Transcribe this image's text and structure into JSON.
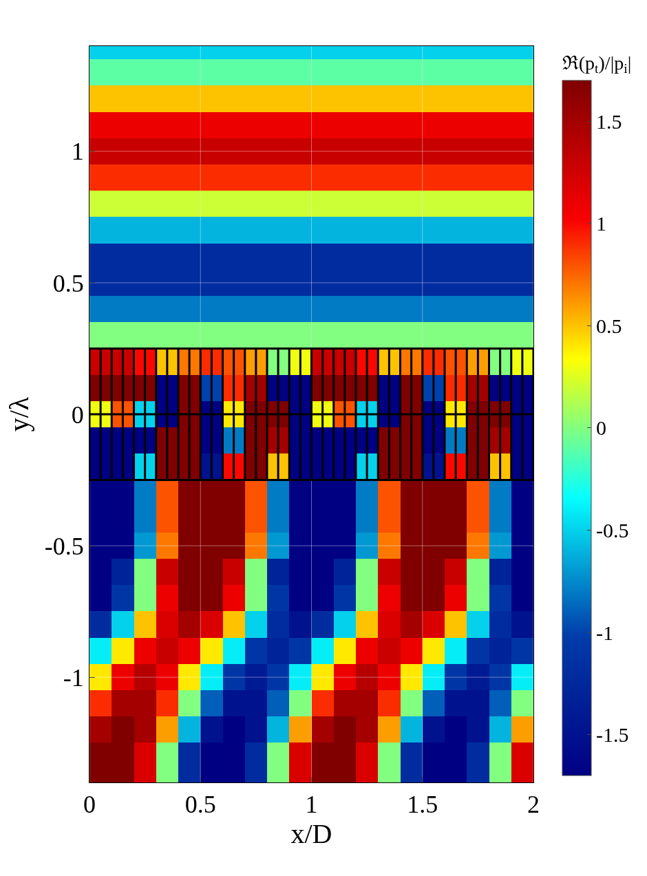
{
  "chart_data": {
    "type": "heatmap",
    "xlabel": "x/D",
    "ylabel": "y/λ",
    "clabel": "ℜ(p$_{t}$)/|p$_{i}$|",
    "x": [
      0.05,
      0.15,
      0.25,
      0.35,
      0.45,
      0.55,
      0.65,
      0.75,
      0.85,
      0.95,
      1.05,
      1.15,
      1.25,
      1.35,
      1.45,
      1.55,
      1.65,
      1.75,
      1.85,
      1.95
    ],
    "y": [
      1.4,
      1.3,
      1.2,
      1.1,
      1.0,
      0.9,
      0.8,
      0.7,
      0.6,
      0.5,
      0.4,
      0.3,
      0.2,
      0.1,
      0,
      -0.1,
      -0.2,
      -0.3,
      -0.4,
      -0.5,
      -0.6,
      -0.7,
      -0.8,
      -0.9,
      -1.0,
      -1.1,
      -1.2,
      -1.3,
      -1.4
    ],
    "cells": [
      [
        -0.5,
        -0.5,
        -0.5,
        -0.5,
        -0.5,
        -0.5,
        -0.5,
        -0.5,
        -0.5,
        -0.5,
        -0.5,
        -0.5,
        -0.5,
        -0.5,
        -0.5,
        -0.5,
        -0.5,
        -0.5,
        -0.5,
        -0.5
      ],
      [
        -0.1,
        -0.1,
        -0.1,
        -0.1,
        -0.1,
        -0.1,
        -0.1,
        -0.1,
        -0.1,
        -0.1,
        -0.1,
        -0.1,
        -0.1,
        -0.1,
        -0.1,
        -0.1,
        -0.1,
        -0.1,
        -0.1,
        -0.1
      ],
      [
        0.5,
        0.5,
        0.5,
        0.5,
        0.5,
        0.5,
        0.5,
        0.5,
        0.5,
        0.5,
        0.5,
        0.5,
        0.5,
        0.5,
        0.5,
        0.5,
        0.5,
        0.5,
        0.5,
        0.5
      ],
      [
        1.1,
        1.1,
        1.1,
        1.1,
        1.1,
        1.1,
        1.1,
        1.1,
        1.1,
        1.1,
        1.1,
        1.1,
        1.1,
        1.1,
        1.1,
        1.1,
        1.1,
        1.1,
        1.1,
        1.1
      ],
      [
        1.3,
        1.3,
        1.3,
        1.3,
        1.3,
        1.3,
        1.3,
        1.3,
        1.3,
        1.3,
        1.3,
        1.3,
        1.3,
        1.3,
        1.3,
        1.3,
        1.3,
        1.3,
        1.3,
        1.3
      ],
      [
        0.9,
        0.9,
        0.9,
        0.9,
        0.9,
        0.9,
        0.9,
        0.9,
        0.9,
        0.9,
        0.9,
        0.9,
        0.9,
        0.9,
        0.9,
        0.9,
        0.9,
        0.9,
        0.9,
        0.9
      ],
      [
        0.2,
        0.2,
        0.2,
        0.2,
        0.2,
        0.2,
        0.2,
        0.2,
        0.2,
        0.2,
        0.2,
        0.2,
        0.2,
        0.2,
        0.2,
        0.2,
        0.2,
        0.2,
        0.2,
        0.2
      ],
      [
        -0.6,
        -0.6,
        -0.6,
        -0.6,
        -0.6,
        -0.6,
        -0.6,
        -0.6,
        -0.6,
        -0.6,
        -0.6,
        -0.6,
        -0.6,
        -0.6,
        -0.6,
        -0.6,
        -0.6,
        -0.6,
        -0.6,
        -0.6
      ],
      [
        -1.2,
        -1.2,
        -1.2,
        -1.2,
        -1.2,
        -1.2,
        -1.2,
        -1.2,
        -1.2,
        -1.2,
        -1.2,
        -1.2,
        -1.2,
        -1.2,
        -1.2,
        -1.2,
        -1.2,
        -1.2,
        -1.2,
        -1.2
      ],
      [
        -1.2,
        -1.2,
        -1.2,
        -1.2,
        -1.2,
        -1.2,
        -1.2,
        -1.2,
        -1.2,
        -1.2,
        -1.2,
        -1.2,
        -1.2,
        -1.2,
        -1.2,
        -1.2,
        -1.2,
        -1.2,
        -1.2,
        -1.2
      ],
      [
        -0.8,
        -0.8,
        -0.8,
        -0.8,
        -0.8,
        -0.8,
        -0.8,
        -0.8,
        -0.8,
        -0.8,
        -0.8,
        -0.8,
        -0.8,
        -0.8,
        -0.8,
        -0.8,
        -0.8,
        -0.8,
        -0.8,
        -0.8
      ],
      [
        0.0,
        0.0,
        0.0,
        0.0,
        0.0,
        0.0,
        0.0,
        0.0,
        0.0,
        0.0,
        0.0,
        0.0,
        0.0,
        0.0,
        0.0,
        0.0,
        0.0,
        0.0,
        0.0,
        0.0
      ],
      [
        1.3,
        1.3,
        1.0,
        0.5,
        0.7,
        0.9,
        0.8,
        0.6,
        0.0,
        0.3,
        1.3,
        1.3,
        1.0,
        0.5,
        0.7,
        0.9,
        0.8,
        0.6,
        0.0,
        0.3
      ],
      [
        1.7,
        1.7,
        1.7,
        -1.7,
        1.7,
        -1.0,
        0.9,
        1.5,
        -1.7,
        -1.7,
        1.7,
        1.7,
        1.7,
        -1.7,
        1.7,
        -1.0,
        0.9,
        1.5,
        -1.7,
        -1.7
      ],
      [
        0.3,
        0.8,
        -0.5,
        -1.7,
        1.7,
        -1.7,
        0.4,
        1.7,
        1.7,
        -1.7,
        0.3,
        0.8,
        -0.5,
        -1.7,
        1.7,
        -1.7,
        0.4,
        1.7,
        1.7,
        -1.7
      ],
      [
        -1.7,
        -1.7,
        -1.7,
        1.7,
        1.7,
        -1.7,
        -0.8,
        1.7,
        1.5,
        -1.7,
        -1.7,
        -1.7,
        -1.7,
        1.7,
        1.7,
        -1.7,
        -0.8,
        1.7,
        1.5,
        -1.7
      ],
      [
        -1.7,
        -1.7,
        -0.5,
        1.7,
        1.7,
        -1.5,
        1.0,
        1.7,
        0.5,
        -1.7,
        -1.7,
        -1.7,
        -0.5,
        1.7,
        1.7,
        -1.5,
        1.0,
        1.7,
        0.5,
        -1.7
      ],
      [
        -1.7,
        -1.7,
        -0.8,
        0.8,
        1.7,
        1.7,
        1.7,
        0.8,
        -0.8,
        -1.7,
        -1.7,
        -1.7,
        -0.8,
        0.8,
        1.7,
        1.7,
        1.7,
        0.8,
        -0.8,
        -1.7
      ],
      [
        -1.7,
        -1.7,
        -0.8,
        0.8,
        1.7,
        1.7,
        1.7,
        0.8,
        -0.8,
        -1.7,
        -1.7,
        -1.7,
        -0.8,
        0.8,
        1.7,
        1.7,
        1.7,
        0.8,
        -0.8,
        -1.7
      ],
      [
        -1.7,
        -1.7,
        -0.7,
        0.7,
        1.7,
        1.7,
        1.7,
        0.7,
        -0.7,
        -1.7,
        -1.7,
        -1.7,
        -0.7,
        0.7,
        1.7,
        1.7,
        1.7,
        0.7,
        -0.7,
        -1.7
      ],
      [
        -1.7,
        -1.3,
        0.0,
        1.3,
        1.7,
        1.7,
        1.3,
        0.0,
        -1.3,
        -1.7,
        -1.7,
        -1.3,
        0.0,
        1.3,
        1.7,
        1.7,
        1.3,
        0.0,
        -1.3,
        -1.7
      ],
      [
        -1.7,
        -1.1,
        0.0,
        1.1,
        1.7,
        1.7,
        1.1,
        0.0,
        -1.1,
        -1.7,
        -1.7,
        -1.1,
        0.0,
        1.1,
        1.7,
        1.7,
        1.1,
        0.0,
        -1.1,
        -1.7
      ],
      [
        -1.2,
        -0.5,
        0.5,
        1.2,
        1.5,
        1.2,
        0.5,
        -0.5,
        -1.2,
        -1.5,
        -1.2,
        -0.5,
        0.5,
        1.2,
        1.5,
        1.2,
        0.5,
        -0.5,
        -1.2,
        -1.5
      ],
      [
        -0.4,
        0.4,
        1.1,
        1.3,
        1.1,
        0.4,
        -0.4,
        -1.1,
        -1.3,
        -1.1,
        -0.4,
        0.4,
        1.1,
        1.3,
        1.1,
        0.4,
        -0.4,
        -1.1,
        -1.3,
        -1.1
      ],
      [
        0.4,
        1.1,
        1.4,
        1.1,
        0.4,
        -0.4,
        -1.1,
        -1.4,
        -1.1,
        -0.4,
        0.4,
        1.1,
        1.4,
        1.1,
        0.4,
        -0.4,
        -1.1,
        -1.4,
        -1.1,
        -0.4
      ],
      [
        0.9,
        1.5,
        1.5,
        0.9,
        0.0,
        -0.9,
        -1.5,
        -1.5,
        -0.9,
        0.0,
        0.9,
        1.5,
        1.5,
        0.9,
        0.0,
        -0.9,
        -1.5,
        -1.5,
        -0.9,
        0.0
      ],
      [
        1.5,
        1.7,
        1.5,
        0.6,
        -0.6,
        -1.5,
        -1.7,
        -1.5,
        -0.6,
        0.6,
        1.5,
        1.7,
        1.5,
        0.6,
        -0.6,
        -1.5,
        -1.7,
        -1.5,
        -0.6,
        0.6
      ],
      [
        1.7,
        1.7,
        1.2,
        0.0,
        -1.2,
        -1.7,
        -1.7,
        -1.2,
        0.0,
        1.2,
        1.7,
        1.7,
        1.2,
        0.0,
        -1.2,
        -1.7,
        -1.7,
        -1.2,
        0.0,
        1.2
      ],
      [
        1.7,
        1.7,
        1.2,
        0.0,
        -1.2,
        -1.7,
        -1.7,
        -1.2,
        0.0,
        1.2,
        1.7,
        1.7,
        1.2,
        0.0,
        -1.2,
        -1.7,
        -1.7,
        -1.2,
        0.0,
        1.2
      ]
    ],
    "xlim": [
      0,
      2
    ],
    "ylim": [
      -1.4,
      1.4
    ],
    "xticks": [
      0,
      0.5,
      1,
      1.5,
      2
    ],
    "yticks": [
      -1,
      -0.5,
      0,
      0.5,
      1
    ],
    "clim": [
      -1.7,
      1.7
    ],
    "cticks": [
      -1.5,
      -1,
      -0.5,
      0,
      0.5,
      1,
      1.5
    ],
    "ref_lines": [
      {
        "axis": "y",
        "value": 0,
        "color": "#000000"
      },
      {
        "axis": "y",
        "value": 0.25,
        "color": "#000000"
      },
      {
        "axis": "y",
        "value": -0.25,
        "color": "#000000"
      },
      {
        "axis": "x",
        "value": 0,
        "color": "#000000"
      },
      {
        "axis": "x",
        "value": 2,
        "color": "#000000"
      },
      {
        "axis": "x",
        "value": 0.05,
        "color": "#000000"
      },
      {
        "axis": "x",
        "value": 0.1,
        "color": "#000000"
      },
      {
        "axis": "x",
        "value": 0.15,
        "color": "#000000"
      },
      {
        "axis": "x",
        "value": 0.2,
        "color": "#000000"
      },
      {
        "axis": "x",
        "value": 0.25,
        "color": "#000000"
      },
      {
        "axis": "x",
        "value": 0.3,
        "color": "#000000"
      },
      {
        "axis": "x",
        "value": 0.35,
        "color": "#000000"
      },
      {
        "axis": "x",
        "value": 0.4,
        "color": "#000000"
      },
      {
        "axis": "x",
        "value": 0.45,
        "color": "#000000"
      },
      {
        "axis": "x",
        "value": 0.5,
        "color": "#000000"
      },
      {
        "axis": "x",
        "value": 0.55,
        "color": "#000000"
      },
      {
        "axis": "x",
        "value": 0.6,
        "color": "#000000"
      },
      {
        "axis": "x",
        "value": 0.65,
        "color": "#000000"
      },
      {
        "axis": "x",
        "value": 0.7,
        "color": "#000000"
      },
      {
        "axis": "x",
        "value": 0.75,
        "color": "#000000"
      },
      {
        "axis": "x",
        "value": 0.8,
        "color": "#000000"
      },
      {
        "axis": "x",
        "value": 0.85,
        "color": "#000000"
      },
      {
        "axis": "x",
        "value": 0.9,
        "color": "#000000"
      },
      {
        "axis": "x",
        "value": 0.95,
        "color": "#000000"
      },
      {
        "axis": "x",
        "value": 1.0,
        "color": "#000000"
      },
      {
        "axis": "x",
        "value": 1.05,
        "color": "#000000"
      },
      {
        "axis": "x",
        "value": 1.1,
        "color": "#000000"
      },
      {
        "axis": "x",
        "value": 1.15,
        "color": "#000000"
      },
      {
        "axis": "x",
        "value": 1.2,
        "color": "#000000"
      },
      {
        "axis": "x",
        "value": 1.25,
        "color": "#000000"
      },
      {
        "axis": "x",
        "value": 1.3,
        "color": "#000000"
      },
      {
        "axis": "x",
        "value": 1.35,
        "color": "#000000"
      },
      {
        "axis": "x",
        "value": 1.4,
        "color": "#000000"
      },
      {
        "axis": "x",
        "value": 1.45,
        "color": "#000000"
      },
      {
        "axis": "x",
        "value": 1.5,
        "color": "#000000"
      },
      {
        "axis": "x",
        "value": 1.55,
        "color": "#000000"
      },
      {
        "axis": "x",
        "value": 1.6,
        "color": "#000000"
      },
      {
        "axis": "x",
        "value": 1.65,
        "color": "#000000"
      },
      {
        "axis": "x",
        "value": 1.7,
        "color": "#000000"
      },
      {
        "axis": "x",
        "value": 1.75,
        "color": "#000000"
      },
      {
        "axis": "x",
        "value": 1.8,
        "color": "#000000"
      },
      {
        "axis": "x",
        "value": 1.85,
        "color": "#000000"
      },
      {
        "axis": "x",
        "value": 1.9,
        "color": "#000000"
      },
      {
        "axis": "x",
        "value": 1.95,
        "color": "#000000"
      }
    ],
    "grid": true
  }
}
